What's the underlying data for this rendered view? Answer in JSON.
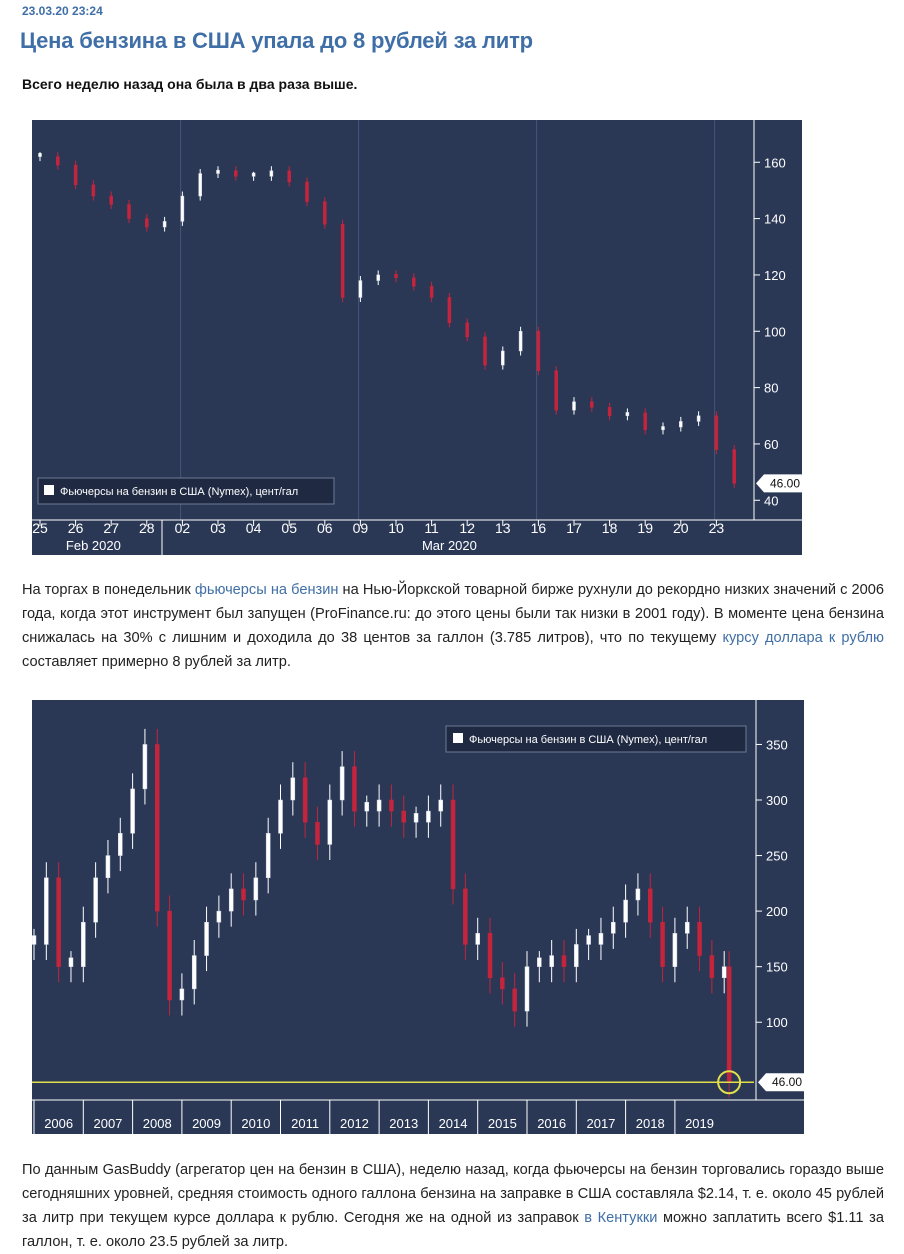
{
  "article": {
    "timestamp": "23.03.20 23:24",
    "title": "Цена бензина в США упала до 8 рублей за литр",
    "lead": "Всего неделю назад она была в два раза выше."
  },
  "paragraph1": {
    "t1": "На торгах в понедельник ",
    "link1": "фьючерсы на бензин",
    "t2": " на Нью-Йоркской товарной бирже рухнули до рекордно низких значений с 2006 года, когда этот инструмент был запущен (ProFinance.ru: до этого цены были так низки в 2001 году). В моменте цена бензина снижалась на 30% с лишним и доходила до 38 центов за галлон (3.785 литров), что по текущему ",
    "link2": "курсу доллара к рублю",
    "t3": " составляет примерно 8 рублей за литр."
  },
  "paragraph2": {
    "t1": "По данным GasBuddy (агрегатор цен на бензин в США), неделю назад, когда фьючерсы на бензин торговались гораздо выше сегодняшних уровней, средняя стоимость одного галлона бензина на заправке в США составляла $2.14, т. е. около 45 рублей за литр при текущем курсе доллара к рублю. Сегодня же на одной из заправок ",
    "link1": "в Кентукки",
    "t2": " можно заплатить всего $1.11 за галлон, т. е. около 23.5 рублей за литр."
  },
  "colors": {
    "background": "#2a3856",
    "up": "#ffffff",
    "down": "#c4243c",
    "axis": "#ffffff",
    "highlight": "#e3e04a"
  },
  "chart_data": [
    {
      "type": "line",
      "subtype": "candlestick",
      "legend": "Фьючерсы на бензин в США (Nymex), цент/гал",
      "legend_position": "bottom-left",
      "categories": [
        "25",
        "26",
        "27",
        "28",
        "02",
        "03",
        "04",
        "05",
        "06",
        "09",
        "10",
        "11",
        "12",
        "13",
        "16",
        "17",
        "18",
        "19",
        "20",
        "23"
      ],
      "month_labels": [
        {
          "label": "Feb 2020",
          "from": 0,
          "to": 3
        },
        {
          "label": "Mar 2020",
          "from": 4,
          "to": 19
        }
      ],
      "session_gaps": [
        3,
        8,
        13,
        18
      ],
      "x": [
        0,
        0.5,
        1,
        1.5,
        2,
        2.5,
        3,
        3.5,
        4,
        4.5,
        5,
        5.5,
        6,
        6.5,
        7,
        7.5,
        8,
        8.5,
        9,
        9.5,
        10,
        10.5,
        11,
        11.5,
        12,
        12.5,
        13,
        13.5,
        14,
        14.5,
        15,
        15.5,
        16,
        16.5,
        17,
        17.5,
        18,
        18.5,
        19,
        19.5
      ],
      "values": [
        162,
        159,
        152,
        148,
        145,
        140,
        137,
        139,
        148,
        156,
        157,
        155,
        155,
        157,
        153,
        146,
        138,
        112,
        118,
        120,
        119,
        116,
        112,
        103,
        98,
        88,
        93,
        100,
        86,
        72,
        75,
        73,
        70,
        71,
        65,
        66,
        68,
        70,
        58,
        46
      ],
      "ylim": [
        33,
        175
      ],
      "yticks": [
        40,
        60,
        80,
        100,
        120,
        140,
        160
      ],
      "last_value": "46.00",
      "grid": false
    },
    {
      "type": "line",
      "subtype": "candlestick",
      "legend": "Фьючерсы на бензин в США (Nymex), цент/гал",
      "legend_position": "top-right",
      "categories": [
        "2006",
        "2007",
        "2008",
        "2009",
        "2010",
        "2011",
        "2012",
        "2013",
        "2014",
        "2015",
        "2016",
        "2017",
        "2018",
        "2019"
      ],
      "x": [
        0,
        0.25,
        0.5,
        0.75,
        1,
        1.25,
        1.5,
        1.75,
        2,
        2.25,
        2.5,
        2.75,
        3,
        3.25,
        3.5,
        3.75,
        4,
        4.25,
        4.5,
        4.75,
        5,
        5.25,
        5.5,
        5.75,
        6,
        6.25,
        6.5,
        6.75,
        7,
        7.25,
        7.5,
        7.75,
        8,
        8.25,
        8.5,
        8.75,
        9,
        9.25,
        9.5,
        9.75,
        10,
        10.25,
        10.5,
        10.75,
        11,
        11.25,
        11.5,
        11.75,
        12,
        12.25,
        12.5,
        12.75,
        13,
        13.25,
        13.5,
        13.75,
        14,
        14.1
      ],
      "values": [
        170,
        230,
        150,
        150,
        190,
        230,
        250,
        270,
        310,
        350,
        200,
        120,
        130,
        160,
        190,
        200,
        220,
        210,
        230,
        270,
        300,
        320,
        280,
        260,
        300,
        330,
        290,
        290,
        300,
        290,
        280,
        280,
        290,
        300,
        220,
        170,
        180,
        140,
        130,
        110,
        150,
        150,
        160,
        150,
        170,
        170,
        180,
        190,
        210,
        220,
        190,
        150,
        180,
        190,
        160,
        140,
        150,
        46
      ],
      "ylim": [
        30,
        390
      ],
      "yticks": [
        100,
        150,
        200,
        250,
        300,
        350
      ],
      "last_value": "46.00",
      "grid": false
    }
  ]
}
